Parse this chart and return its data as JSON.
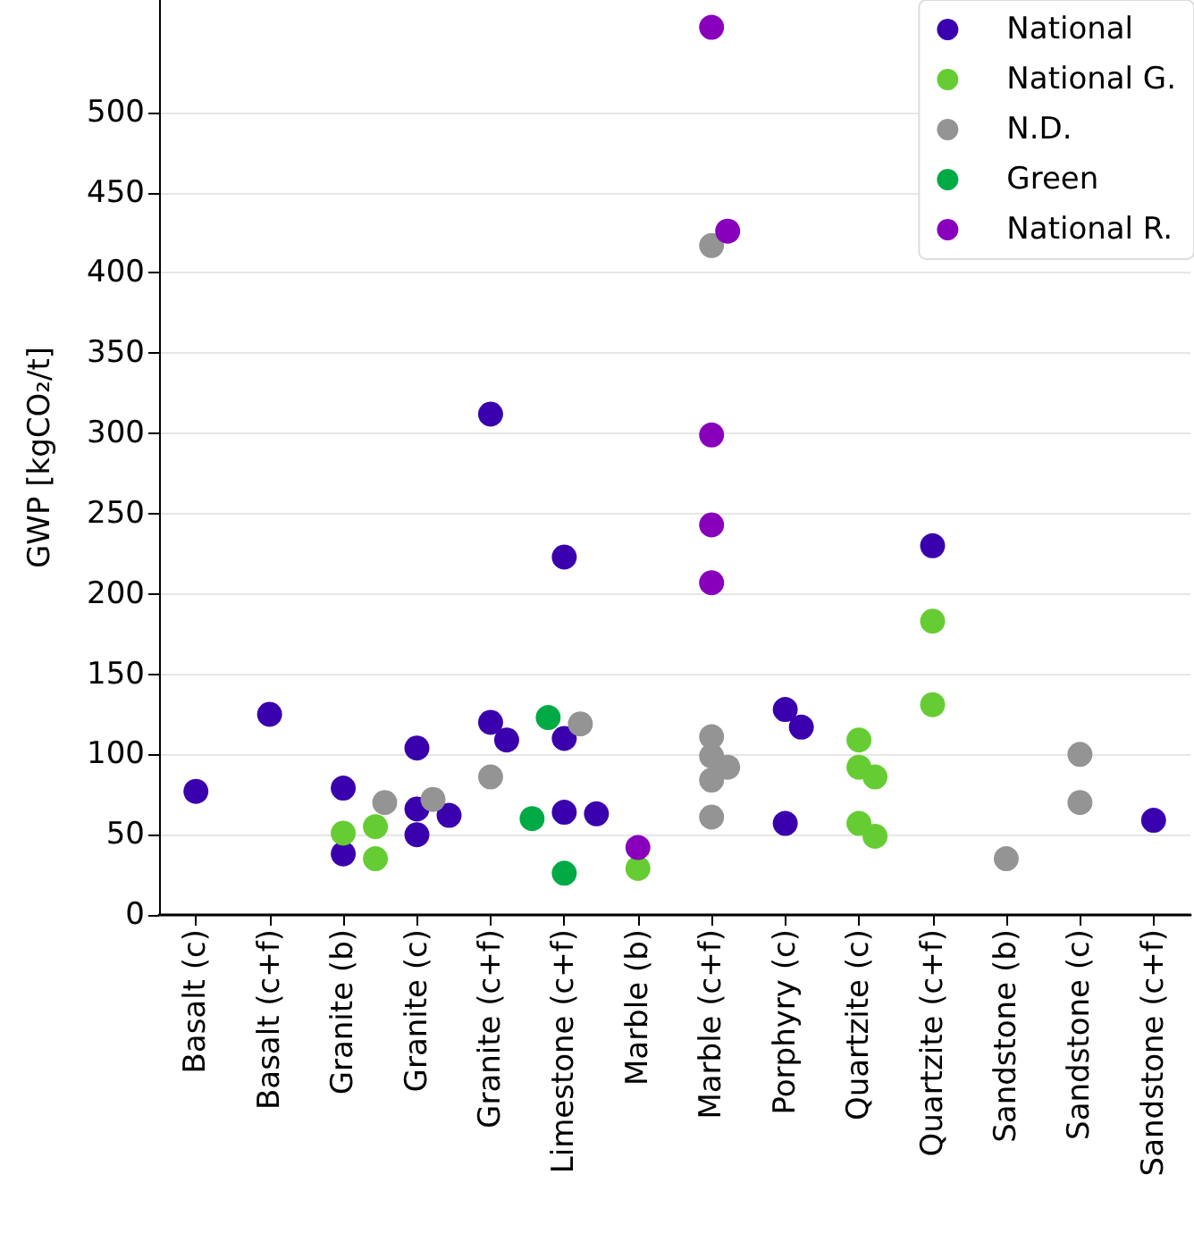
{
  "chart_data": {
    "type": "scatter",
    "ylabel": "GWP [kgCO₂/t]",
    "categories": [
      "Basalt (c)",
      "Basalt (c+f)",
      "Granite (b)",
      "Granite (c)",
      "Granite (c+f)",
      "Limestone (c+f)",
      "Marble (b)",
      "Marble (c+f)",
      "Porphyry (c)",
      "Quartzite (c)",
      "Quartzite (c+f)",
      "Sandstone (b)",
      "Sandstone (c)",
      "Sandstone (c+f)"
    ],
    "series": [
      {
        "name": "National",
        "color": "#3a00ad",
        "x": [
          "Basalt (c)",
          "Basalt (c+f)",
          "Granite (b)",
          "Granite (b)",
          "Granite (c)",
          "Granite (c)",
          "Granite (c)",
          "Granite (c)",
          "Granite (c+f)",
          "Granite (c+f)",
          "Granite (c+f)",
          "Limestone (c+f)",
          "Limestone (c+f)",
          "Limestone (c+f)",
          "Limestone (c+f)",
          "Porphyry (c)",
          "Porphyry (c)",
          "Porphyry (c)",
          "Quartzite (c+f)",
          "Sandstone (c+f)"
        ],
        "values": [
          77,
          125,
          79,
          38,
          104,
          66,
          62,
          50,
          312,
          120,
          109,
          223,
          110,
          64,
          63,
          128,
          117,
          57,
          230,
          59
        ]
      },
      {
        "name": "National G.",
        "color": "#66cc33",
        "x": [
          "Granite (b)",
          "Granite (b)",
          "Granite (b)",
          "Marble (b)",
          "Quartzite (c)",
          "Quartzite (c)",
          "Quartzite (c)",
          "Quartzite (c)",
          "Quartzite (c)",
          "Quartzite (c+f)",
          "Quartzite (c+f)"
        ],
        "values": [
          51,
          55,
          35,
          29,
          109,
          92,
          86,
          57,
          49,
          183,
          131
        ]
      },
      {
        "name": "N.D.",
        "color": "#949494",
        "x": [
          "Granite (c)",
          "Granite (c)",
          "Granite (c+f)",
          "Limestone (c+f)",
          "Marble (c+f)",
          "Marble (c+f)",
          "Marble (c+f)",
          "Marble (c+f)",
          "Marble (c+f)",
          "Marble (c+f)",
          "Sandstone (b)",
          "Sandstone (c)",
          "Sandstone (c)"
        ],
        "values": [
          70,
          72,
          86,
          119,
          417,
          111,
          99,
          92,
          84,
          61,
          35,
          100,
          70
        ]
      },
      {
        "name": "Green",
        "color": "#00aa44",
        "x": [
          "Limestone (c+f)",
          "Limestone (c+f)",
          "Limestone (c+f)"
        ],
        "values": [
          123,
          60,
          26
        ]
      },
      {
        "name": "National R.",
        "color": "#8800bb",
        "x": [
          "Marble (b)",
          "Marble (c+f)",
          "Marble (c+f)",
          "Marble (c+f)",
          "Marble (c+f)",
          "Marble (c+f)"
        ],
        "values": [
          42,
          553,
          426,
          299,
          243,
          207
        ]
      }
    ],
    "ylim": [
      0,
      570
    ],
    "yticks": [
      0,
      50,
      100,
      150,
      200,
      250,
      300,
      350,
      400,
      450,
      500
    ],
    "grid": "y",
    "legend": "top right",
    "marker": "circle"
  }
}
